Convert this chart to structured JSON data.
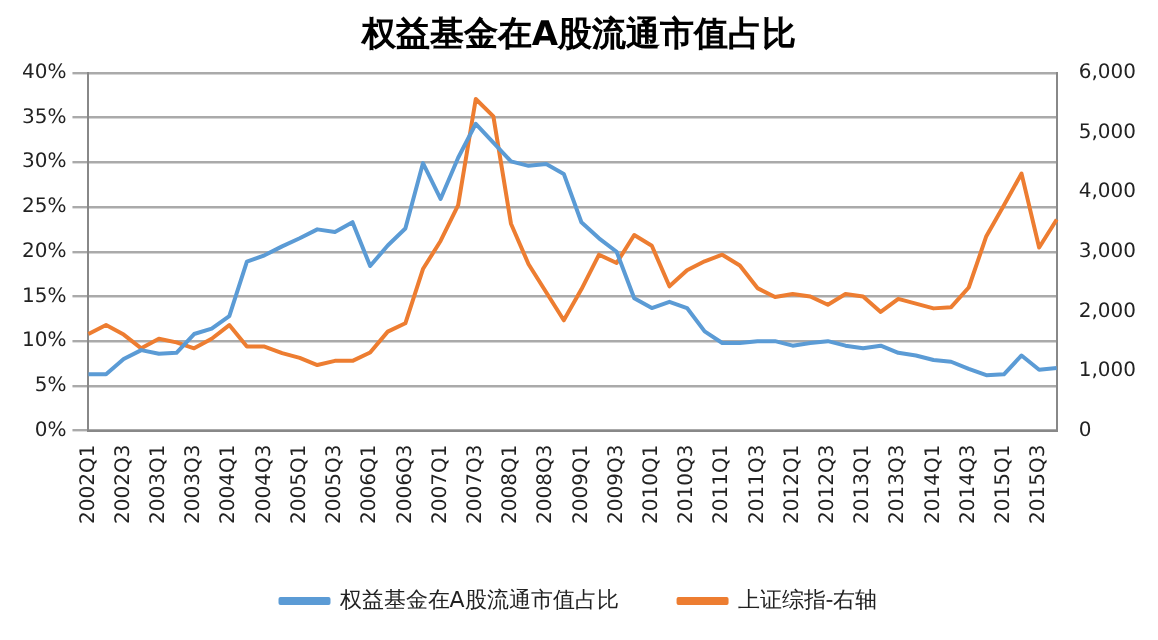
{
  "chart_data": {
    "type": "line",
    "title": "权益基金在A股流通市值占比",
    "categories": [
      "2002Q1",
      null,
      "2002Q3",
      null,
      "2003Q1",
      null,
      "2003Q3",
      null,
      "2004Q1",
      null,
      "2004Q3",
      null,
      "2005Q1",
      null,
      "2005Q3",
      null,
      "2006Q1",
      null,
      "2006Q3",
      null,
      "2007Q1",
      null,
      "2007Q3",
      null,
      "2008Q1",
      null,
      "2008Q3",
      null,
      "2009Q1",
      null,
      "2009Q3",
      null,
      "2010Q1",
      null,
      "2010Q3",
      null,
      "2011Q1",
      null,
      "2011Q3",
      null,
      "2012Q1",
      null,
      "2012Q3",
      null,
      "2013Q1",
      null,
      "2013Q3",
      null,
      "2014Q1",
      null,
      "2014Q3",
      null,
      "2015Q1",
      null,
      "2015Q3",
      null
    ],
    "series": [
      {
        "name": "权益基金在A股流通市值占比",
        "color": "#5b9bd5",
        "values": [
          6.3,
          6.3,
          8.0,
          9.0,
          8.6,
          8.7,
          10.8,
          11.4,
          12.8,
          18.9,
          19.6,
          20.6,
          21.5,
          22.5,
          22.2,
          23.3,
          18.4,
          20.7,
          22.6,
          29.9,
          25.9,
          30.5,
          34.3,
          32.2,
          30.1,
          29.6,
          29.8,
          28.7,
          23.3,
          21.5,
          20.0,
          14.8,
          13.7,
          14.4,
          13.7,
          11.1,
          9.8,
          9.8,
          10.0,
          10.0,
          9.5,
          9.8,
          10.0,
          9.5,
          9.2,
          9.5,
          8.7,
          8.4,
          7.9,
          7.7,
          6.9,
          6.2,
          6.3,
          8.4,
          6.8,
          7.0
        ]
      },
      {
        "name": "上证综指-右轴",
        "color": "#ed7d31",
        "axis": "y2",
        "values": [
          1620,
          1770,
          1610,
          1380,
          1540,
          1480,
          1380,
          1540,
          1770,
          1410,
          1410,
          1300,
          1220,
          1100,
          1170,
          1170,
          1310,
          1660,
          1800,
          2710,
          3180,
          3780,
          5560,
          5270,
          3470,
          2790,
          2320,
          1850,
          2370,
          2950,
          2810,
          3280,
          3100,
          2420,
          2690,
          2840,
          2950,
          2770,
          2390,
          2240,
          2290,
          2250,
          2110,
          2290,
          2250,
          1990,
          2210,
          2130,
          2050,
          2070,
          2400,
          3260,
          3780,
          4310,
          3070,
          3540
        ]
      }
    ],
    "ylim": [
      0,
      40
    ],
    "yticks": [
      {
        "value": 0,
        "label": "0%"
      },
      {
        "value": 5,
        "label": "5%"
      },
      {
        "value": 10,
        "label": "10%"
      },
      {
        "value": 15,
        "label": "15%"
      },
      {
        "value": 20,
        "label": "20%"
      },
      {
        "value": 25,
        "label": "25%"
      },
      {
        "value": 30,
        "label": "30%"
      },
      {
        "value": 35,
        "label": "35%"
      },
      {
        "value": 40,
        "label": "40%"
      }
    ],
    "y2lim": [
      0,
      6000
    ],
    "y2ticks": [
      0,
      {
        "value": 1000,
        "label": "1,000"
      },
      {
        "value": 2000,
        "label": "2,000"
      },
      {
        "value": 3000,
        "label": "3,000"
      },
      {
        "value": 4000,
        "label": "4,000"
      },
      {
        "value": 5000,
        "label": "5,000"
      },
      {
        "value": 6000,
        "label": "6,000"
      }
    ],
    "grid": "y",
    "legend": "bottom",
    "marker": "none",
    "line_style": "solid"
  }
}
